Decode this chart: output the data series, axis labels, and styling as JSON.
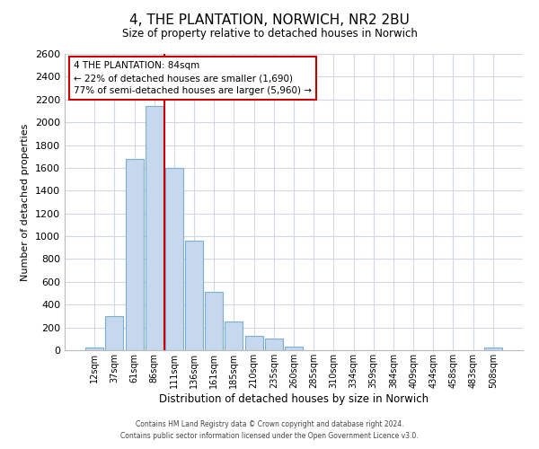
{
  "title": "4, THE PLANTATION, NORWICH, NR2 2BU",
  "subtitle": "Size of property relative to detached houses in Norwich",
  "xlabel": "Distribution of detached houses by size in Norwich",
  "ylabel": "Number of detached properties",
  "bar_labels": [
    "12sqm",
    "37sqm",
    "61sqm",
    "86sqm",
    "111sqm",
    "136sqm",
    "161sqm",
    "185sqm",
    "210sqm",
    "235sqm",
    "260sqm",
    "285sqm",
    "310sqm",
    "334sqm",
    "359sqm",
    "384sqm",
    "409sqm",
    "434sqm",
    "458sqm",
    "483sqm",
    "508sqm"
  ],
  "bar_values": [
    20,
    300,
    1680,
    2140,
    1600,
    960,
    510,
    255,
    125,
    100,
    35,
    0,
    0,
    0,
    0,
    0,
    0,
    0,
    0,
    0,
    20
  ],
  "bar_color": "#c5d8ed",
  "bar_edge_color": "#7bafd4",
  "grid_color": "#d0d8e8",
  "vline_x": 3.5,
  "vline_color": "#cc0000",
  "annotation_title": "4 THE PLANTATION: 84sqm",
  "annotation_line1": "← 22% of detached houses are smaller (1,690)",
  "annotation_line2": "77% of semi-detached houses are larger (5,960) →",
  "annotation_box_color": "#ffffff",
  "annotation_box_edge": "#cc0000",
  "ylim": [
    0,
    2600
  ],
  "yticks": [
    0,
    200,
    400,
    600,
    800,
    1000,
    1200,
    1400,
    1600,
    1800,
    2000,
    2200,
    2400,
    2600
  ],
  "footer1": "Contains HM Land Registry data © Crown copyright and database right 2024.",
  "footer2": "Contains public sector information licensed under the Open Government Licence v3.0."
}
